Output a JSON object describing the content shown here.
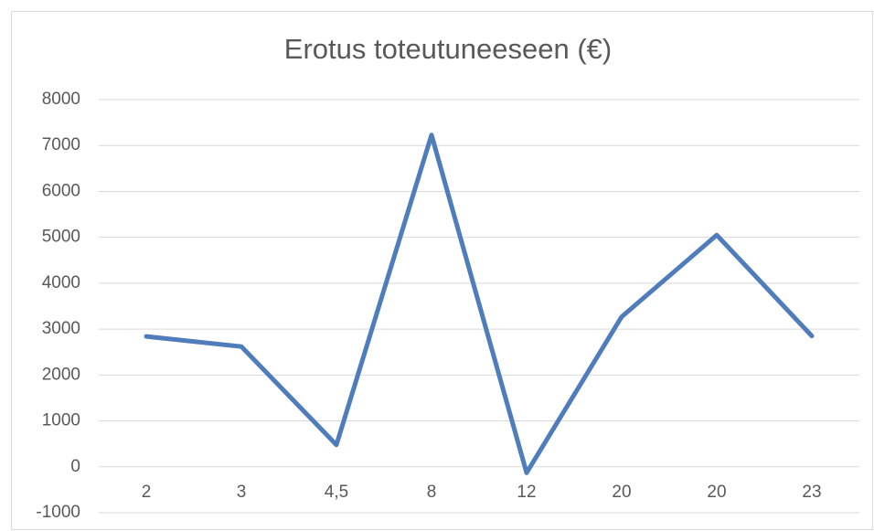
{
  "chart_data": {
    "type": "line",
    "title": "Erotus toteutuneeseen (€)",
    "categories": [
      "2",
      "3",
      "4,5",
      "8",
      "12",
      "20",
      "20",
      "23"
    ],
    "values": [
      2840,
      2620,
      480,
      7230,
      -130,
      3270,
      5050,
      2850
    ],
    "color": "#4f7cba",
    "ylim": [
      -1000,
      8000
    ],
    "yticks": [
      -1000,
      0,
      1000,
      2000,
      3000,
      4000,
      5000,
      6000,
      7000,
      8000
    ],
    "grid": true
  }
}
